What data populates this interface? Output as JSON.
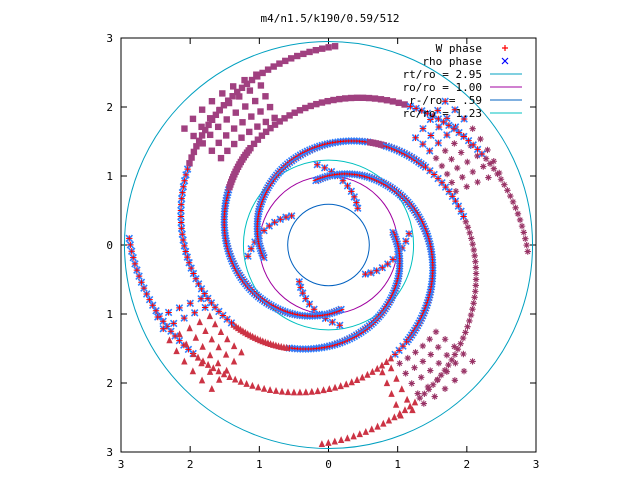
{
  "chart_data": {
    "type": "scatter",
    "title": "m4/n1.5/k190/0.59/512",
    "xlabel": "",
    "ylabel": "",
    "xlim": [
      -3,
      3
    ],
    "ylim": [
      -3,
      3
    ],
    "x_tick_values": [
      -3,
      -2,
      -1,
      0,
      1,
      2,
      3
    ],
    "x_tick_labels": [
      "3",
      "2",
      "1",
      "0",
      "1",
      "2",
      "3"
    ],
    "y_tick_values": [
      3,
      2,
      1,
      0,
      -1,
      -2,
      -3
    ],
    "y_tick_labels": [
      "3",
      "2",
      "1",
      "0",
      "1",
      "2",
      "3"
    ],
    "grid": false,
    "legend_position": "top-right",
    "series": [
      {
        "name": "W phase",
        "marker": "plus",
        "color": "#ff0000"
      },
      {
        "name": "rho phase",
        "marker": "cross",
        "color": "#0000ff"
      },
      {
        "name": "rt/ro = 2.95",
        "marker": "line",
        "color": "#00a0c0",
        "radius": 2.95
      },
      {
        "name": "ro/ro = 1.00",
        "marker": "line",
        "color": "#a000a0",
        "radius": 1.0
      },
      {
        "name": "r-/ro = .59",
        "marker": "line",
        "color": "#0060c0",
        "radius": 0.59
      },
      {
        "name": "rc/ro = 1.23",
        "marker": "line",
        "color": "#00c0c0",
        "radius": 1.23
      }
    ],
    "point_pattern": {
      "arms": 4,
      "arm_rotation_deg": 90,
      "colors": {
        "square": "#a04080",
        "cross": "#3080ff",
        "triangle": "#cc3344",
        "star": "#993366"
      }
    }
  }
}
